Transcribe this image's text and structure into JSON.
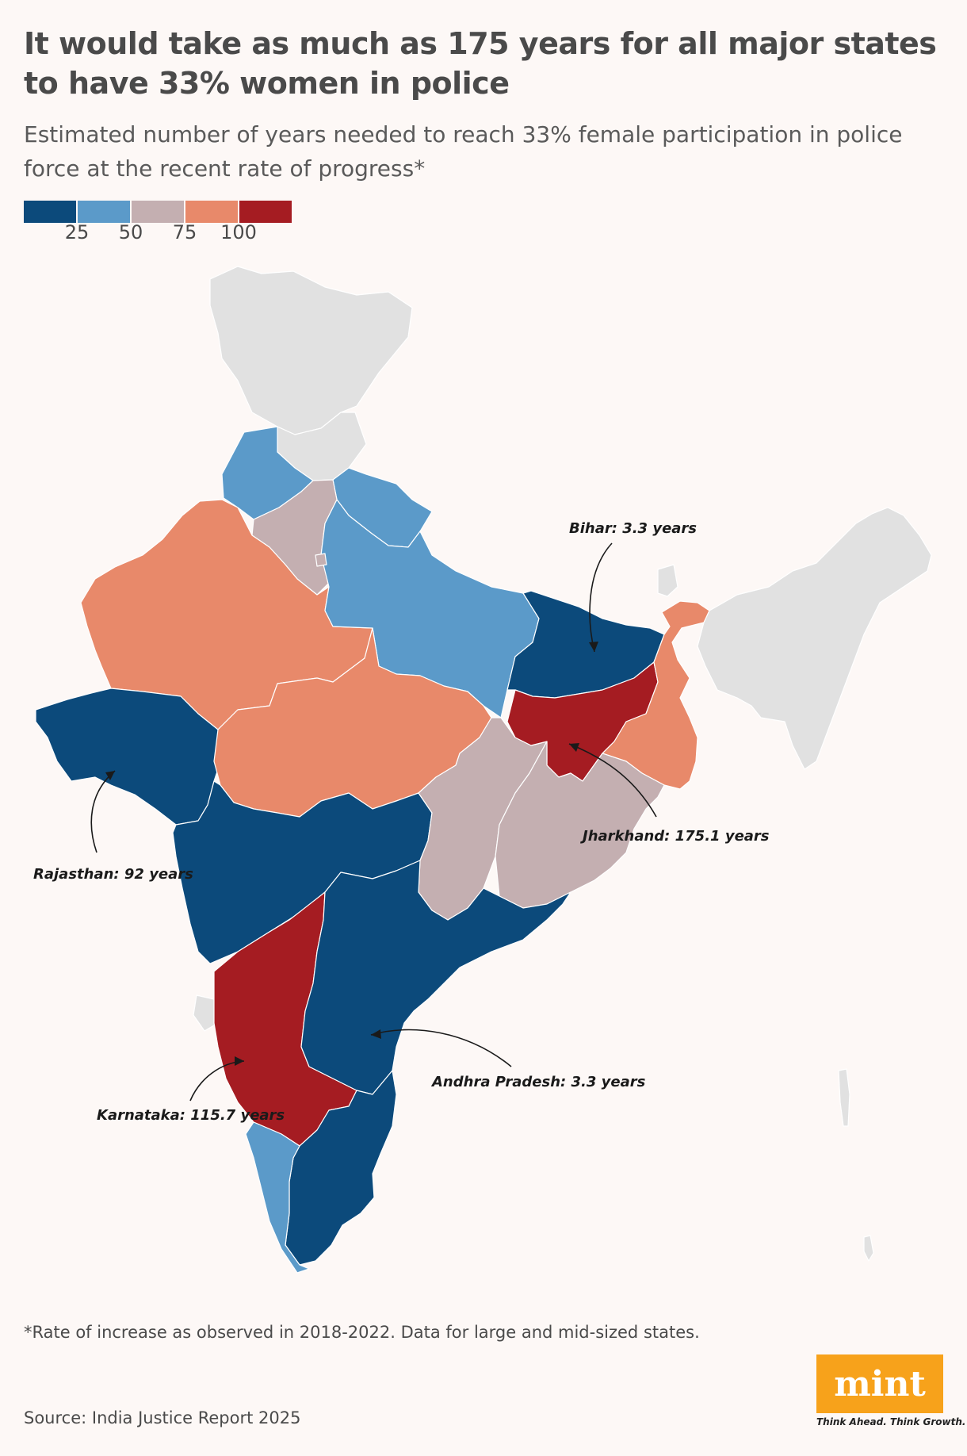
{
  "title": "It would take as much as 175 years for all major states to have 33% women in police",
  "subtitle": "Estimated number of years needed to reach 33% female participation in police force at the recent rate of progress*",
  "legend": {
    "colors": [
      "#0c4a7b",
      "#5b9ac9",
      "#c4afb1",
      "#e8896a",
      "#a51c22"
    ],
    "ticks": [
      "25",
      "50",
      "75",
      "100"
    ]
  },
  "colors": {
    "na": "#e1e1e1",
    "border": "#ffffff",
    "background": "#fdf8f6"
  },
  "annotations": {
    "bihar": "Bihar: 3.3 years",
    "jharkhand": "Jharkhand: 175.1 years",
    "rajasthan": "Rajasthan: 92 years",
    "andhra": "Andhra Pradesh: 3.3 years",
    "karnataka": "Karnataka: 115.7 years"
  },
  "footnote": "*Rate of increase as observed in 2018-2022. Data for large and mid-sized states.",
  "source": "Source: India Justice Report 2025",
  "logo": {
    "name": "mint",
    "tagline": "Think Ahead. Think Growth."
  }
}
